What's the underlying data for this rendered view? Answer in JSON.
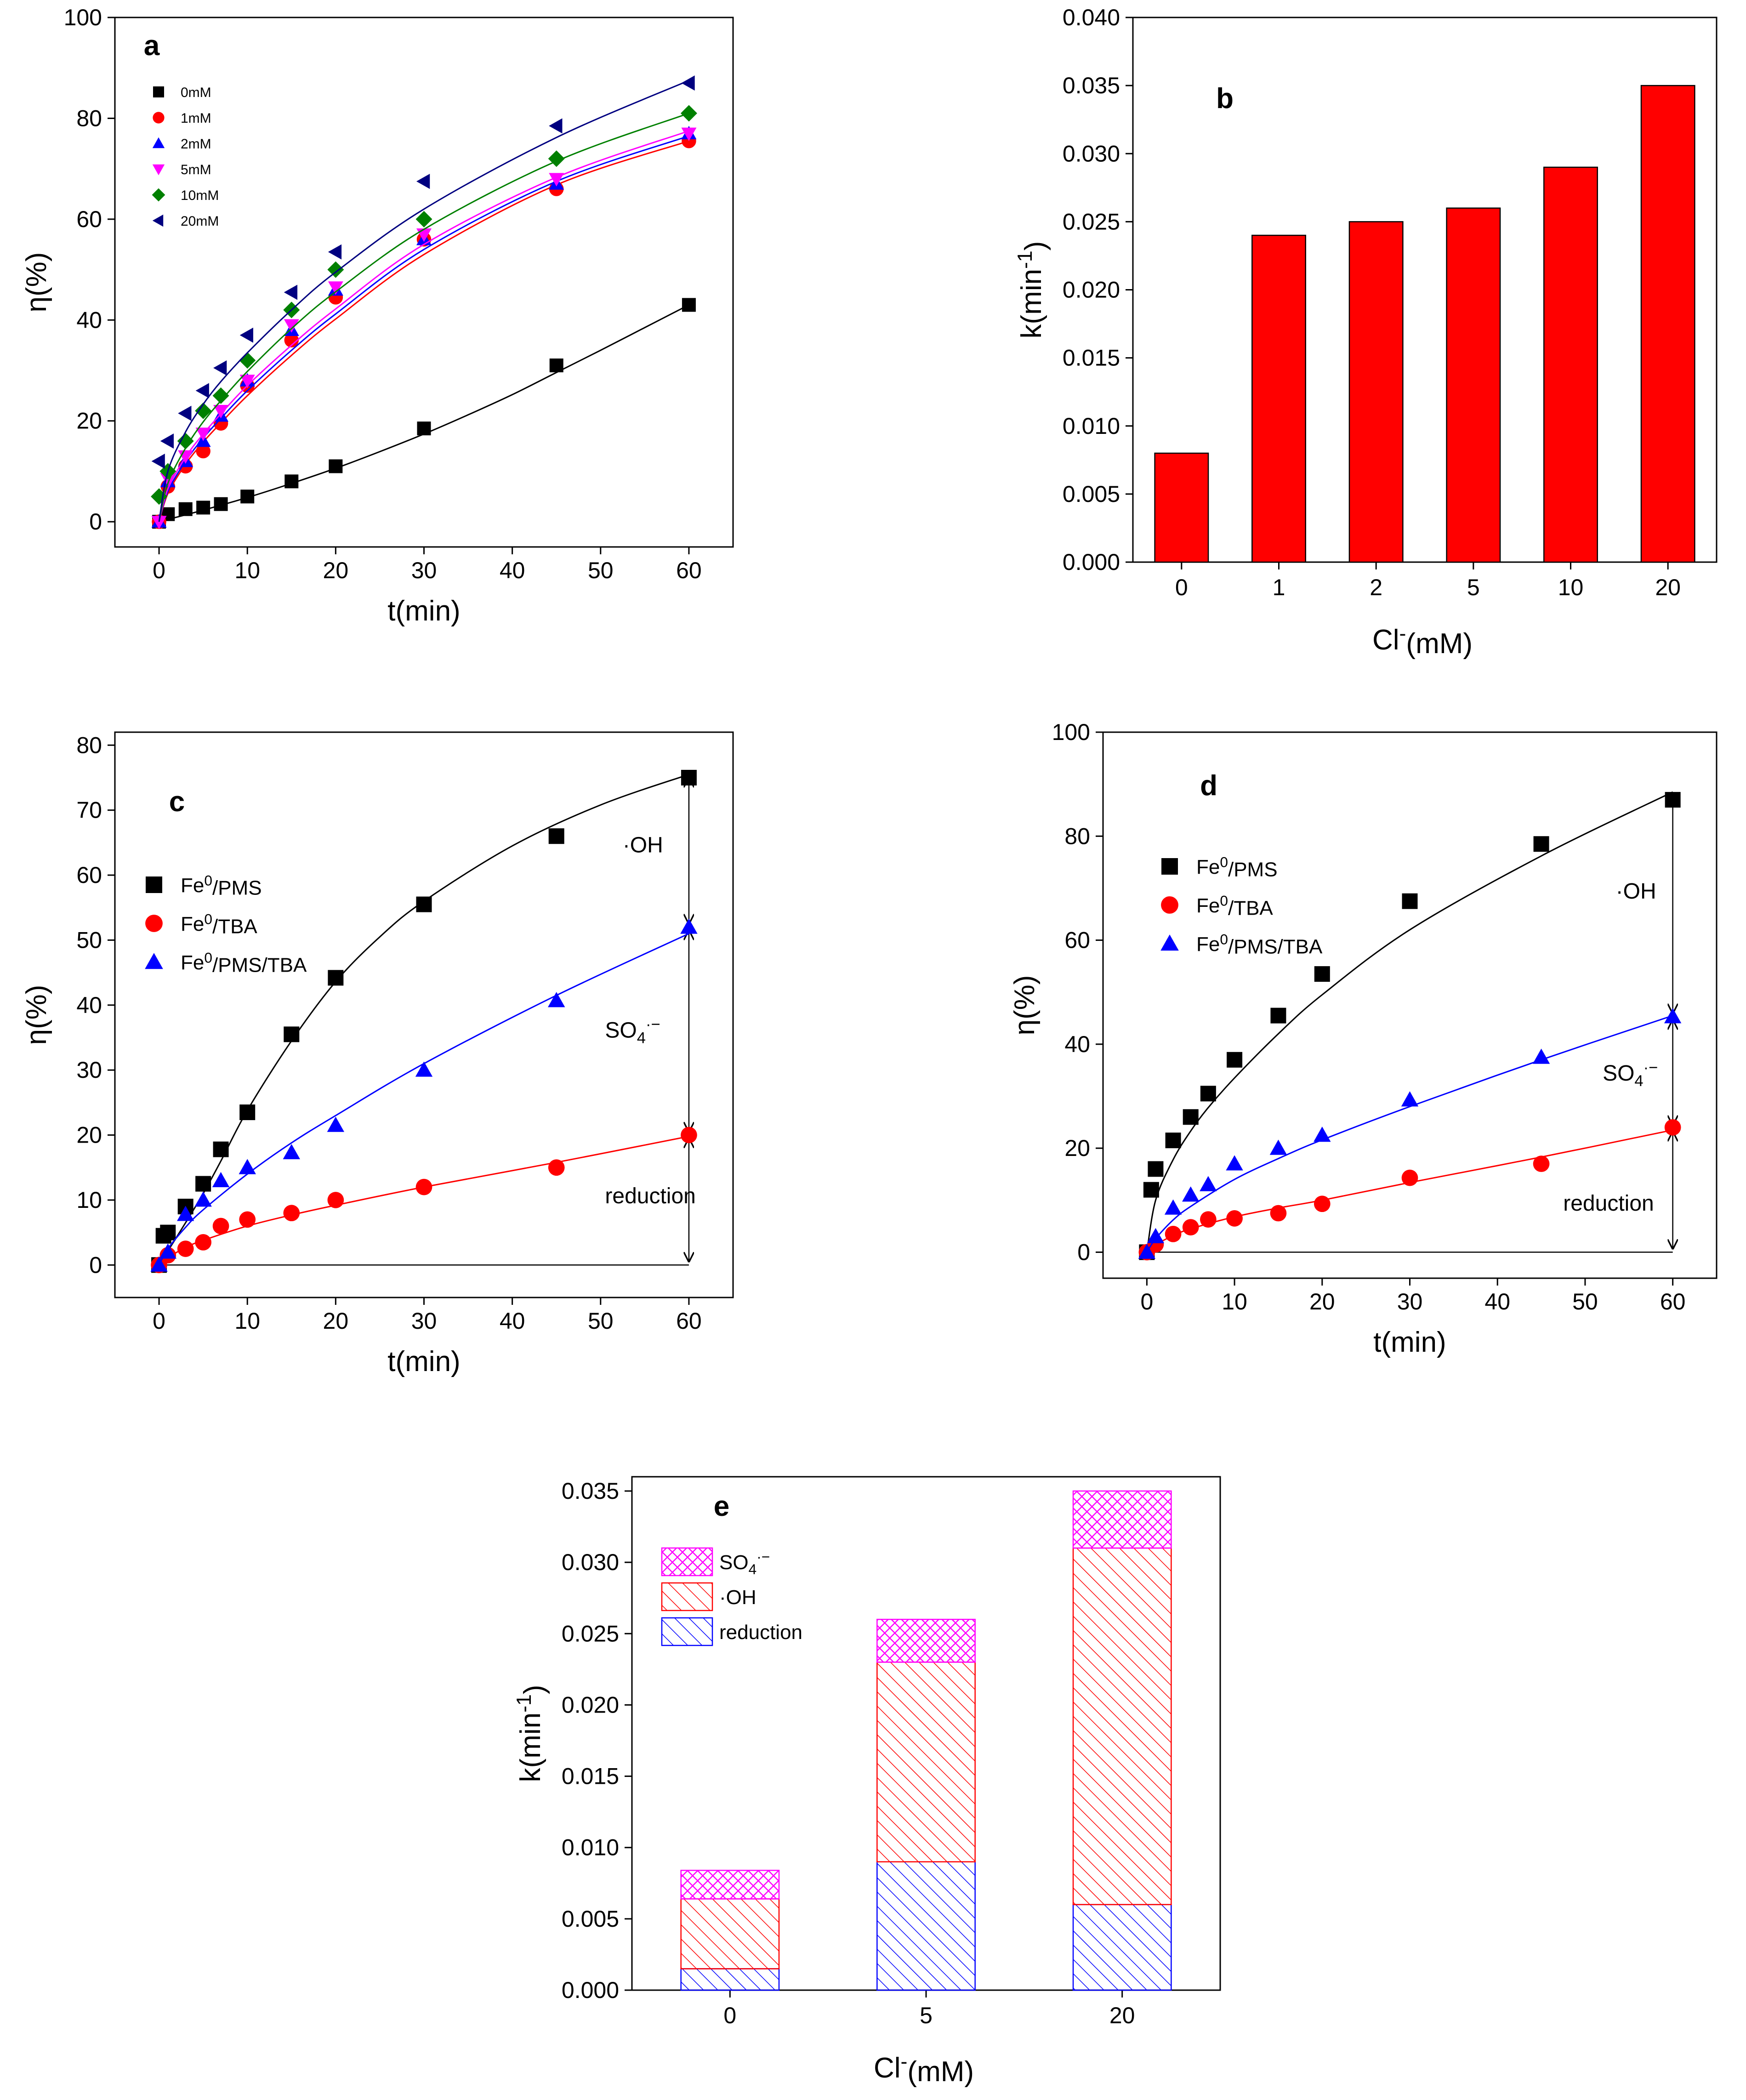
{
  "chart_data": [
    {
      "id": "a",
      "type": "scatter",
      "panel_label": "a",
      "xlabel": "t(min)",
      "ylabel": "η(%)",
      "xlim": [
        -5,
        65
      ],
      "ylim": [
        -5,
        100
      ],
      "xticks": [
        0,
        10,
        20,
        30,
        40,
        50,
        60
      ],
      "yticks": [
        0,
        20,
        40,
        60,
        80,
        100
      ],
      "series": [
        {
          "name": "0mM",
          "marker": "square",
          "color": "#000000",
          "x": [
            0,
            1,
            3,
            5,
            7,
            10,
            15,
            20,
            30,
            45,
            60
          ],
          "y": [
            0,
            1.5,
            2.5,
            2.8,
            3.5,
            5,
            8,
            11,
            18.5,
            31,
            43
          ],
          "fit": [
            [
              0,
              0
            ],
            [
              5,
              2.3
            ],
            [
              10,
              4.8
            ],
            [
              15,
              7.6
            ],
            [
              20,
              10.6
            ],
            [
              25,
              13.9
            ],
            [
              30,
              17.4
            ],
            [
              35,
              21.2
            ],
            [
              40,
              25.2
            ],
            [
              45,
              29.6
            ],
            [
              50,
              34.0
            ],
            [
              55,
              38.5
            ],
            [
              60,
              43
            ]
          ]
        },
        {
          "name": "1mM",
          "marker": "circle",
          "color": "#ff0000",
          "x": [
            0,
            1,
            3,
            5,
            7,
            10,
            15,
            20,
            30,
            45,
            60
          ],
          "y": [
            0,
            7,
            11,
            14,
            19.5,
            27,
            36,
            44.5,
            56,
            66,
            75.5
          ],
          "fit": [
            [
              0,
              0
            ],
            [
              1,
              5.6
            ],
            [
              3,
              11.4
            ],
            [
              5,
              15.8
            ],
            [
              7,
              19.6
            ],
            [
              10,
              25
            ],
            [
              15,
              33
            ],
            [
              20,
              40.2
            ],
            [
              30,
              53
            ],
            [
              45,
              66.8
            ],
            [
              60,
              75.5
            ]
          ]
        },
        {
          "name": "2mM",
          "marker": "triangle-up",
          "color": "#0000ff",
          "x": [
            0,
            1,
            3,
            5,
            7,
            10,
            15,
            20,
            30,
            45,
            60
          ],
          "y": [
            0,
            8,
            12,
            16,
            21,
            28,
            38,
            46,
            56,
            67,
            77
          ],
          "fit": [
            [
              0,
              0
            ],
            [
              1,
              6
            ],
            [
              3,
              12
            ],
            [
              5,
              16.6
            ],
            [
              7,
              20.5
            ],
            [
              10,
              26
            ],
            [
              15,
              34
            ],
            [
              20,
              41.2
            ],
            [
              30,
              54
            ],
            [
              45,
              67.5
            ],
            [
              60,
              76.5
            ]
          ]
        },
        {
          "name": "5mM",
          "marker": "triangle-down",
          "color": "#ff00ff",
          "x": [
            0,
            1,
            3,
            5,
            7,
            10,
            15,
            20,
            30,
            45,
            60
          ],
          "y": [
            0,
            8.5,
            13,
            17.5,
            22,
            28,
            39,
            46.5,
            57,
            68,
            77
          ],
          "fit": [
            [
              0,
              0
            ],
            [
              1,
              6.5
            ],
            [
              3,
              12.8
            ],
            [
              5,
              17.4
            ],
            [
              7,
              21.4
            ],
            [
              10,
              27
            ],
            [
              15,
              35
            ],
            [
              20,
              42.2
            ],
            [
              30,
              55
            ],
            [
              45,
              68.3
            ],
            [
              60,
              77.5
            ]
          ]
        },
        {
          "name": "10mM",
          "marker": "diamond",
          "color": "#008000",
          "x": [
            0,
            1,
            3,
            5,
            7,
            10,
            15,
            20,
            30,
            45,
            60
          ],
          "y": [
            5,
            10,
            16,
            22,
            25,
            32,
            42,
            50,
            60,
            72,
            81
          ],
          "fit": [
            [
              0,
              0
            ],
            [
              1,
              7.6
            ],
            [
              3,
              14.6
            ],
            [
              5,
              19.8
            ],
            [
              7,
              24
            ],
            [
              10,
              29.8
            ],
            [
              15,
              38.3
            ],
            [
              20,
              45.6
            ],
            [
              30,
              58
            ],
            [
              45,
              71.5
            ],
            [
              60,
              81
            ]
          ]
        },
        {
          "name": "20mM",
          "marker": "triangle-left",
          "color": "#000080",
          "x": [
            0,
            1,
            3,
            5,
            7,
            10,
            15,
            20,
            30,
            45,
            60
          ],
          "y": [
            12,
            16,
            21.5,
            26,
            30.5,
            37,
            45.5,
            53.5,
            67.5,
            78.5,
            87
          ],
          "fit": [
            [
              0,
              0
            ],
            [
              1,
              10
            ],
            [
              3,
              17.8
            ],
            [
              5,
              23.3
            ],
            [
              7,
              27.8
            ],
            [
              10,
              33.5
            ],
            [
              15,
              42
            ],
            [
              20,
              49.5
            ],
            [
              30,
              62
            ],
            [
              45,
              76.2
            ],
            [
              60,
              87.5
            ]
          ]
        }
      ]
    },
    {
      "id": "b",
      "type": "bar",
      "panel_label": "b",
      "xlabel": "Cl⁻(mM)",
      "ylabel": "k(min⁻¹)",
      "categories": [
        "0",
        "1",
        "2",
        "5",
        "10",
        "20"
      ],
      "values": [
        0.008,
        0.024,
        0.025,
        0.026,
        0.029,
        0.035
      ],
      "ylim": [
        0,
        0.04
      ],
      "yticks": [
        "0.000",
        "0.005",
        "0.010",
        "0.015",
        "0.020",
        "0.025",
        "0.030",
        "0.035",
        "0.040"
      ],
      "bar_color": "#ff0000"
    },
    {
      "id": "c",
      "type": "scatter",
      "panel_label": "c",
      "xlabel": "t(min)",
      "ylabel": "η(%)",
      "xlim": [
        -5,
        65
      ],
      "ylim": [
        -5,
        82
      ],
      "xticks": [
        0,
        10,
        20,
        30,
        40,
        50,
        60
      ],
      "yticks": [
        0,
        10,
        20,
        30,
        40,
        50,
        60,
        70,
        80
      ],
      "series": [
        {
          "name": "Fe⁰/PMS",
          "marker": "square",
          "color": "#000000",
          "x": [
            0,
            0.5,
            1,
            3,
            5,
            7,
            10,
            15,
            20,
            30,
            45,
            60
          ],
          "y": [
            0,
            4.5,
            5,
            9,
            12.5,
            17.8,
            23.5,
            35.5,
            44.2,
            55.5,
            66,
            75
          ],
          "fit": [
            [
              0,
              0
            ],
            [
              3,
              6.5
            ],
            [
              5,
              11
            ],
            [
              7,
              16
            ],
            [
              10,
              23.8
            ],
            [
              15,
              34.5
            ],
            [
              20,
              43.6
            ],
            [
              25,
              50.5
            ],
            [
              30,
              56
            ],
            [
              40,
              64.5
            ],
            [
              50,
              70.8
            ],
            [
              60,
              75.5
            ]
          ]
        },
        {
          "name": "Fe⁰/TBA",
          "marker": "circle",
          "color": "#ff0000",
          "x": [
            0,
            1,
            3,
            5,
            7,
            10,
            15,
            20,
            30,
            45,
            60
          ],
          "y": [
            0,
            1.5,
            2.5,
            3.5,
            6,
            7,
            8,
            10,
            12,
            15,
            20
          ],
          "fit": [
            [
              0,
              0
            ],
            [
              1,
              1.1
            ],
            [
              3,
              2.7
            ],
            [
              5,
              3.8
            ],
            [
              10,
              6
            ],
            [
              15,
              7.7
            ],
            [
              20,
              9.2
            ],
            [
              30,
              12
            ],
            [
              45,
              15.8
            ],
            [
              60,
              19.8
            ]
          ]
        },
        {
          "name": "Fe⁰/PMS/TBA",
          "marker": "triangle-up",
          "color": "#0000ff",
          "x": [
            0,
            1,
            3,
            5,
            7,
            10,
            15,
            20,
            30,
            45,
            60
          ],
          "y": [
            0,
            2,
            7.8,
            10,
            13,
            15,
            17.3,
            21.5,
            30,
            40.7,
            52
          ],
          "fit": [
            [
              0,
              0
            ],
            [
              1,
              2.5
            ],
            [
              3,
              5.8
            ],
            [
              5,
              8.5
            ],
            [
              10,
              14
            ],
            [
              15,
              18.8
            ],
            [
              20,
              23
            ],
            [
              30,
              31
            ],
            [
              45,
              41.5
            ],
            [
              60,
              51
            ]
          ]
        }
      ],
      "annotations": [
        {
          "text": "·OH",
          "x": 52.5,
          "y": 63.5
        },
        {
          "text": "SO4·−",
          "x": 50.5,
          "y": 35
        },
        {
          "text": "reduction",
          "x": 50.5,
          "y": 9.5
        }
      ],
      "arrow_x": 60,
      "arrow_levels": [
        75.5,
        52,
        20,
        0
      ]
    },
    {
      "id": "d",
      "type": "scatter",
      "panel_label": "d",
      "xlabel": "t(min)",
      "ylabel": "η(%)",
      "xlim": [
        -5,
        65
      ],
      "ylim": [
        -5,
        100
      ],
      "xticks": [
        0,
        10,
        20,
        30,
        40,
        50,
        60
      ],
      "yticks": [
        0,
        20,
        40,
        60,
        80,
        100
      ],
      "series": [
        {
          "name": "Fe⁰/PMS",
          "marker": "square",
          "color": "#000000",
          "x": [
            0,
            0.5,
            1,
            3,
            5,
            7,
            10,
            15,
            20,
            30,
            45,
            60
          ],
          "y": [
            0,
            12,
            16,
            21.5,
            26,
            30.5,
            37,
            45.5,
            53.5,
            67.5,
            78.5,
            87
          ],
          "fit": [
            [
              0,
              0
            ],
            [
              1,
              10
            ],
            [
              3,
              17.8
            ],
            [
              5,
              23.3
            ],
            [
              7,
              27.8
            ],
            [
              10,
              33.5
            ],
            [
              15,
              42
            ],
            [
              20,
              49.5
            ],
            [
              30,
              62
            ],
            [
              45,
              76.2
            ],
            [
              60,
              88.5
            ]
          ]
        },
        {
          "name": "Fe⁰/TBA",
          "marker": "circle",
          "color": "#ff0000",
          "x": [
            0,
            1,
            3,
            5,
            7,
            10,
            15,
            20,
            30,
            45,
            60
          ],
          "y": [
            0,
            1.5,
            3.5,
            4.8,
            6.3,
            6.5,
            7.5,
            9.3,
            14.3,
            17,
            24
          ],
          "fit": [
            [
              0,
              0
            ],
            [
              1,
              1.4
            ],
            [
              3,
              3.2
            ],
            [
              5,
              4.5
            ],
            [
              10,
              6.8
            ],
            [
              15,
              8.5
            ],
            [
              20,
              10
            ],
            [
              30,
              13.4
            ],
            [
              45,
              18.3
            ],
            [
              60,
              23.5
            ]
          ]
        },
        {
          "name": "Fe⁰/PMS/TBA",
          "marker": "triangle-up",
          "color": "#0000ff",
          "x": [
            0,
            1,
            3,
            5,
            7,
            10,
            15,
            20,
            30,
            45,
            60
          ],
          "y": [
            0,
            3,
            8.5,
            11,
            13,
            17,
            20,
            22.5,
            29.3,
            37.5,
            45.3
          ],
          "fit": [
            [
              0,
              0
            ],
            [
              1,
              2.6
            ],
            [
              3,
              6.2
            ],
            [
              5,
              8.8
            ],
            [
              10,
              14
            ],
            [
              15,
              18
            ],
            [
              20,
              21.6
            ],
            [
              30,
              28
            ],
            [
              45,
              37
            ],
            [
              60,
              45.5
            ]
          ]
        }
      ],
      "annotations": [
        {
          "text": "·OH",
          "x": 53.5,
          "y": 68
        },
        {
          "text": "SO4·−",
          "x": 52,
          "y": 33
        },
        {
          "text": "reduction",
          "x": 47.5,
          "y": 8
        }
      ],
      "arrow_x": 60,
      "arrow_levels": [
        88.5,
        45.3,
        23.8,
        0
      ]
    },
    {
      "id": "e",
      "type": "bar",
      "panel_label": "e",
      "stacked": true,
      "xlabel": "Cl⁻(mM)",
      "ylabel": "k(min⁻¹)",
      "categories": [
        "0",
        "5",
        "20"
      ],
      "ylim": [
        0,
        0.036
      ],
      "yticks": [
        "0.000",
        "0.005",
        "0.010",
        "0.015",
        "0.020",
        "0.025",
        "0.030",
        "0.035"
      ],
      "series": [
        {
          "name": "reduction",
          "color": "#0000ff",
          "pattern": "hatch-back",
          "values": [
            0.0015,
            0.009,
            0.006
          ]
        },
        {
          "name": "·OH",
          "color": "#ff0000",
          "pattern": "hatch-back",
          "values": [
            0.0049,
            0.014,
            0.025
          ]
        },
        {
          "name": "SO4·−",
          "color": "#ff00ff",
          "pattern": "crosshatch",
          "values": [
            0.002,
            0.003,
            0.004
          ]
        }
      ]
    }
  ]
}
